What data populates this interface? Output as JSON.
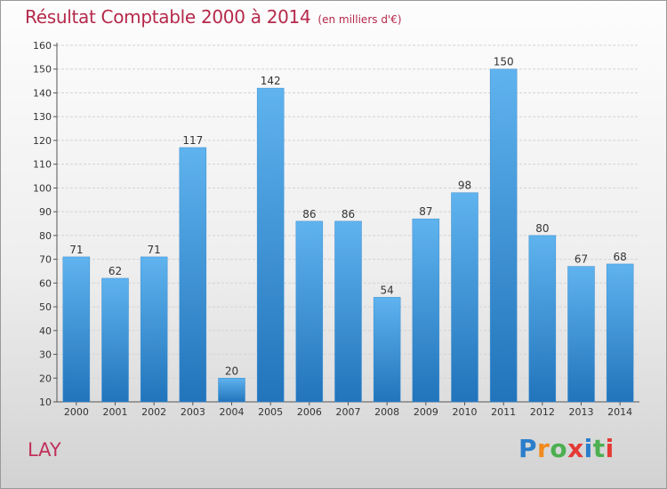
{
  "title": "Résultat Comptable 2000 à 2014",
  "subtitle": "(en milliers d'€)",
  "place": "LAY",
  "logo": {
    "letters": [
      "P",
      "r",
      "o",
      "x",
      "i",
      "t",
      "i"
    ],
    "colors": [
      "#2a7ecb",
      "#f08a1c",
      "#4caf50",
      "#e53935",
      "#2a7ecb",
      "#4caf50",
      "#e53935"
    ]
  },
  "chart_data": {
    "type": "bar",
    "categories": [
      "2000",
      "2001",
      "2002",
      "2003",
      "2004",
      "2005",
      "2006",
      "2007",
      "2008",
      "2009",
      "2010",
      "2011",
      "2012",
      "2013",
      "2014"
    ],
    "values": [
      71,
      62,
      71,
      117,
      20,
      142,
      86,
      86,
      54,
      87,
      98,
      150,
      80,
      67,
      68
    ],
    "ylim": [
      10,
      160
    ],
    "yticks": [
      10,
      20,
      30,
      40,
      50,
      60,
      70,
      80,
      90,
      100,
      110,
      120,
      130,
      140,
      150,
      160
    ],
    "grid": true,
    "bar_color": "#4a9fe0"
  }
}
